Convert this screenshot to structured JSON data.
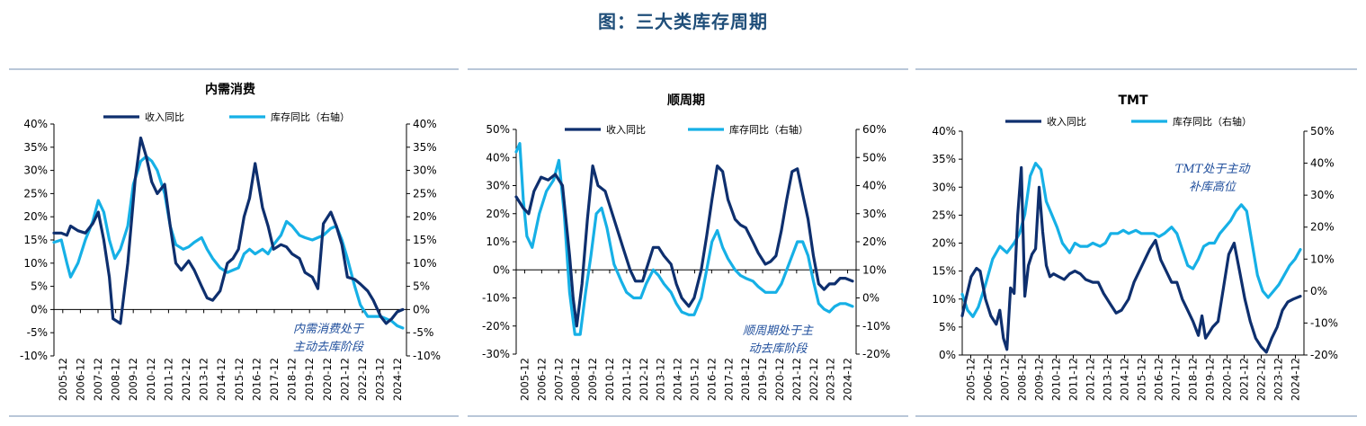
{
  "page_title": "图：三大类库存周期",
  "colors": {
    "revenue": "#0e2f6e",
    "inventory": "#16b0e6",
    "axis": "#000000",
    "annotation": "#1f4e9c"
  },
  "chart_data": [
    {
      "type": "line",
      "title": "内需消费",
      "left_axis": {
        "ylim": [
          -10,
          40
        ],
        "ticks": [
          "-10%",
          "-5%",
          "0%",
          "5%",
          "10%",
          "15%",
          "20%",
          "25%",
          "30%",
          "35%",
          "40%"
        ]
      },
      "right_axis": {
        "ylim": [
          -10,
          40
        ],
        "ticks": [
          "-10%",
          "-5%",
          "0%",
          "5%",
          "10%",
          "15%",
          "20%",
          "25%",
          "30%",
          "35%",
          "40%"
        ]
      },
      "x_ticks": [
        "2005-12",
        "2006-12",
        "2007-12",
        "2008-12",
        "2009-12",
        "2010-12",
        "2011-12",
        "2012-12",
        "2013-12",
        "2014-12",
        "2015-12",
        "2016-12",
        "2017-12",
        "2018-12",
        "2019-12",
        "2020-12",
        "2021-12",
        "2022-12",
        "2023-12",
        "2024-12"
      ],
      "x_range": [
        2005.9,
        2025.0
      ],
      "legend": [
        "收入同比",
        "库存同比（右轴）"
      ],
      "annotation": [
        "内需消费处于",
        "主动去库阶段"
      ],
      "series": [
        {
          "name": "收入同比",
          "axis": "left",
          "color": "#0e2f6e",
          "x": [
            2005.9,
            2006.3,
            2006.6,
            2006.8,
            2007.2,
            2007.6,
            2008.0,
            2008.3,
            2008.6,
            2008.9,
            2009.1,
            2009.5,
            2009.9,
            2010.3,
            2010.6,
            2010.9,
            2011.2,
            2011.5,
            2011.9,
            2012.2,
            2012.5,
            2012.8,
            2013.2,
            2013.5,
            2013.9,
            2014.2,
            2014.5,
            2014.9,
            2015.3,
            2015.6,
            2015.9,
            2016.2,
            2016.5,
            2016.8,
            2017.2,
            2017.5,
            2017.8,
            2018.2,
            2018.5,
            2018.8,
            2019.2,
            2019.5,
            2019.9,
            2020.2,
            2020.5,
            2020.9,
            2021.2,
            2021.5,
            2021.8,
            2022.2,
            2022.5,
            2022.9,
            2023.2,
            2023.6,
            2023.9,
            2024.2,
            2024.5,
            2024.8
          ],
          "y": [
            16.5,
            16.5,
            16,
            18,
            17,
            16.5,
            18.5,
            21,
            15,
            7,
            -2,
            -3,
            10,
            28,
            37,
            33,
            27.5,
            25,
            27,
            18,
            10,
            8.5,
            10.5,
            8.5,
            5,
            2.5,
            2,
            4,
            10,
            11,
            13,
            20,
            24,
            31.5,
            22,
            18,
            13,
            14,
            13.5,
            12,
            11,
            8,
            7,
            4.5,
            18.5,
            21,
            18,
            14,
            7,
            6.5,
            5.5,
            4,
            2,
            -1.5,
            -3,
            -2,
            -0.5,
            0
          ]
        },
        {
          "name": "库存同比（右轴）",
          "axis": "right",
          "color": "#16b0e6",
          "x": [
            2005.9,
            2006.3,
            2006.6,
            2006.8,
            2007.2,
            2007.6,
            2008.0,
            2008.3,
            2008.6,
            2008.9,
            2009.2,
            2009.5,
            2009.9,
            2010.2,
            2010.6,
            2010.9,
            2011.2,
            2011.5,
            2011.9,
            2012.2,
            2012.5,
            2012.9,
            2013.2,
            2013.5,
            2013.9,
            2014.2,
            2014.5,
            2014.9,
            2015.3,
            2015.6,
            2015.9,
            2016.2,
            2016.5,
            2016.8,
            2017.2,
            2017.5,
            2017.8,
            2018.2,
            2018.5,
            2018.8,
            2019.2,
            2019.5,
            2019.9,
            2020.2,
            2020.5,
            2020.9,
            2021.2,
            2021.5,
            2021.8,
            2022.2,
            2022.5,
            2022.9,
            2023.2,
            2023.6,
            2023.9,
            2024.2,
            2024.5,
            2024.8
          ],
          "y": [
            14.5,
            15,
            10,
            7,
            10,
            15,
            19,
            23.5,
            21,
            15,
            11,
            13,
            18,
            27,
            32,
            33,
            32,
            30,
            25,
            18,
            14,
            13,
            13.5,
            14.5,
            15.5,
            13,
            11,
            9,
            8,
            8.5,
            9,
            12,
            13,
            12,
            13,
            12,
            14,
            16,
            19,
            18,
            16,
            15.5,
            15,
            15.5,
            16,
            17.5,
            18,
            15,
            11,
            5,
            1,
            -1.5,
            -1.5,
            -1.5,
            -2,
            -2.5,
            -3.5,
            -4
          ]
        }
      ]
    },
    {
      "type": "line",
      "title": "顺周期",
      "left_axis": {
        "ylim": [
          -30,
          50
        ],
        "ticks": [
          "-30%",
          "-20%",
          "-10%",
          "0%",
          "10%",
          "20%",
          "30%",
          "40%",
          "50%"
        ]
      },
      "right_axis": {
        "ylim": [
          -20,
          60
        ],
        "ticks": [
          "-20%",
          "-10%",
          "0%",
          "10%",
          "20%",
          "30%",
          "40%",
          "50%",
          "60%"
        ]
      },
      "x_ticks": [
        "2005-12",
        "2006-12",
        "2007-12",
        "2008-12",
        "2009-12",
        "2010-12",
        "2011-12",
        "2012-12",
        "2013-12",
        "2014-12",
        "2015-12",
        "2016-12",
        "2017-12",
        "2018-12",
        "2019-12",
        "2020-12",
        "2021-12",
        "2022-12",
        "2023-12",
        "2024-12"
      ],
      "x_range": [
        2005.9,
        2025.0
      ],
      "legend": [
        "收入同比",
        "库存同比（右轴）"
      ],
      "annotation": [
        "顺周期处于主",
        "动去库阶段"
      ],
      "series": [
        {
          "name": "收入同比",
          "axis": "left",
          "color": "#0e2f6e",
          "x": [
            2005.9,
            2006.3,
            2006.6,
            2006.9,
            2007.3,
            2007.7,
            2008.1,
            2008.5,
            2008.9,
            2009.1,
            2009.3,
            2009.6,
            2009.9,
            2010.2,
            2010.5,
            2010.9,
            2011.3,
            2011.6,
            2011.9,
            2012.3,
            2012.6,
            2013.0,
            2013.3,
            2013.6,
            2013.9,
            2014.2,
            2014.6,
            2014.9,
            2015.2,
            2015.6,
            2015.9,
            2016.3,
            2016.6,
            2016.9,
            2017.2,
            2017.5,
            2017.8,
            2018.2,
            2018.5,
            2018.8,
            2019.2,
            2019.5,
            2019.9,
            2020.2,
            2020.5,
            2020.8,
            2021.1,
            2021.4,
            2021.7,
            2022.0,
            2022.3,
            2022.6,
            2022.9,
            2023.2,
            2023.5,
            2023.8,
            2024.1,
            2024.4,
            2024.8
          ],
          "y": [
            26,
            22,
            20,
            28,
            33,
            32,
            34,
            30,
            5,
            -10,
            -20,
            -5,
            18,
            37,
            30,
            28,
            20,
            14,
            8,
            0,
            -4,
            -4,
            2,
            8,
            8,
            5,
            2,
            -5,
            -10,
            -13,
            -10,
            0,
            12,
            25,
            37,
            35,
            25,
            18,
            16,
            15,
            10,
            6,
            2,
            3,
            5,
            14,
            25,
            35,
            36,
            27,
            18,
            5,
            -5,
            -7,
            -5,
            -5,
            -3,
            -3,
            -4
          ]
        },
        {
          "name": "库存同比（右轴）",
          "axis": "right",
          "color": "#16b0e6",
          "x": [
            2005.9,
            2006.1,
            2006.3,
            2006.5,
            2006.8,
            2007.2,
            2007.6,
            2008.0,
            2008.3,
            2008.6,
            2008.9,
            2009.2,
            2009.5,
            2009.8,
            2010.1,
            2010.4,
            2010.7,
            2011.0,
            2011.4,
            2011.8,
            2012.1,
            2012.5,
            2012.9,
            2013.2,
            2013.6,
            2013.9,
            2014.2,
            2014.6,
            2014.9,
            2015.2,
            2015.6,
            2015.9,
            2016.3,
            2016.6,
            2016.9,
            2017.2,
            2017.5,
            2017.8,
            2018.2,
            2018.5,
            2018.8,
            2019.2,
            2019.5,
            2019.9,
            2020.2,
            2020.5,
            2020.8,
            2021.1,
            2021.4,
            2021.7,
            2022.0,
            2022.3,
            2022.6,
            2022.9,
            2023.2,
            2023.5,
            2023.8,
            2024.1,
            2024.4,
            2024.8
          ],
          "y": [
            52,
            55,
            35,
            22,
            18,
            30,
            38,
            42,
            49,
            30,
            2,
            -13,
            -13,
            2,
            15,
            30,
            32,
            25,
            12,
            6,
            2,
            0,
            0,
            5,
            10,
            8,
            5,
            2,
            -2,
            -5,
            -6,
            -6,
            0,
            10,
            20,
            24,
            18,
            14,
            10,
            8,
            7,
            6,
            4,
            2,
            2,
            2,
            5,
            10,
            15,
            20,
            20,
            15,
            6,
            -2,
            -4,
            -5,
            -3,
            -2,
            -2,
            -3
          ]
        }
      ]
    },
    {
      "type": "line",
      "title": "TMT",
      "left_axis": {
        "ylim": [
          0,
          40
        ],
        "ticks": [
          "0%",
          "5%",
          "10%",
          "15%",
          "20%",
          "25%",
          "30%",
          "35%",
          "40%"
        ]
      },
      "right_axis": {
        "ylim": [
          -20,
          50
        ],
        "ticks": [
          "-20%",
          "-10%",
          "0%",
          "10%",
          "20%",
          "30%",
          "40%",
          "50%"
        ]
      },
      "x_ticks": [
        "2005-12",
        "2006-12",
        "2007-12",
        "2008-12",
        "2009-12",
        "2010-12",
        "2011-12",
        "2012-12",
        "2013-12",
        "2014-12",
        "2015-12",
        "2016-12",
        "2017-12",
        "2018-12",
        "2019-12",
        "2020-12",
        "2021-12",
        "2022-12",
        "2023-12",
        "2024-12"
      ],
      "x_range": [
        2005.9,
        2025.0
      ],
      "legend": [
        "收入同比",
        "库存同比（右轴）"
      ],
      "annotation": [
        "TMT处于主动",
        "补库高位"
      ],
      "series": [
        {
          "name": "收入同比",
          "axis": "left",
          "color": "#0e2f6e",
          "x": [
            2005.9,
            2006.1,
            2006.4,
            2006.7,
            2006.9,
            2007.2,
            2007.5,
            2007.8,
            2008.0,
            2008.2,
            2008.4,
            2008.6,
            2008.8,
            2009.0,
            2009.2,
            2009.4,
            2009.6,
            2009.8,
            2010.0,
            2010.2,
            2010.4,
            2010.6,
            2010.8,
            2011.0,
            2011.3,
            2011.6,
            2011.9,
            2012.2,
            2012.5,
            2012.8,
            2013.2,
            2013.5,
            2013.8,
            2014.2,
            2014.5,
            2014.8,
            2015.2,
            2015.5,
            2015.8,
            2016.1,
            2016.4,
            2016.7,
            2017.0,
            2017.3,
            2017.6,
            2017.9,
            2018.2,
            2018.5,
            2018.8,
            2019.1,
            2019.3,
            2019.5,
            2019.7,
            2019.9,
            2020.2,
            2020.5,
            2020.8,
            2021.1,
            2021.4,
            2021.7,
            2022.0,
            2022.3,
            2022.6,
            2022.9,
            2023.2,
            2023.5,
            2023.8,
            2024.1,
            2024.4,
            2024.8
          ],
          "y": [
            7,
            10,
            14,
            15.5,
            15,
            10,
            7,
            5.5,
            8,
            3,
            1,
            12,
            11,
            25,
            33.5,
            10.5,
            16,
            18,
            19,
            30,
            22,
            16,
            14,
            14.5,
            14,
            13.5,
            14.5,
            15,
            14.5,
            13.5,
            13,
            13,
            11,
            9,
            7.5,
            8,
            10,
            13,
            15,
            17,
            19,
            20.5,
            17,
            15,
            13,
            13,
            10,
            8,
            6,
            3.5,
            7,
            3,
            4,
            5,
            6,
            12,
            18,
            20,
            15,
            10,
            6,
            3,
            1.5,
            0.5,
            3,
            5,
            8,
            9.5,
            10,
            10.5
          ]
        },
        {
          "name": "库存同比（右轴）",
          "axis": "right",
          "color": "#16b0e6",
          "x": [
            2005.9,
            2006.2,
            2006.5,
            2006.8,
            2007.2,
            2007.6,
            2008.0,
            2008.4,
            2008.8,
            2009.1,
            2009.4,
            2009.7,
            2010.0,
            2010.3,
            2010.6,
            2010.9,
            2011.2,
            2011.5,
            2011.9,
            2012.2,
            2012.5,
            2012.9,
            2013.2,
            2013.6,
            2013.9,
            2014.2,
            2014.6,
            2014.9,
            2015.2,
            2015.6,
            2015.9,
            2016.2,
            2016.6,
            2016.9,
            2017.2,
            2017.6,
            2017.9,
            2018.2,
            2018.5,
            2018.8,
            2019.1,
            2019.4,
            2019.7,
            2020.0,
            2020.3,
            2020.6,
            2020.9,
            2021.2,
            2021.5,
            2021.8,
            2022.1,
            2022.4,
            2022.7,
            2023.0,
            2023.3,
            2023.6,
            2023.9,
            2024.2,
            2024.5,
            2024.8
          ],
          "y": [
            -1,
            -6,
            -8,
            -5,
            2,
            10,
            14,
            12,
            15,
            18,
            24,
            36,
            40,
            38,
            28,
            24,
            20,
            15,
            12,
            15,
            14,
            14,
            15,
            14,
            15,
            18,
            18,
            19,
            18,
            19,
            18,
            18,
            18,
            17,
            18,
            20,
            18,
            13,
            8,
            7,
            10,
            14,
            15,
            15,
            18,
            20,
            22,
            25,
            27,
            25,
            15,
            5,
            0,
            -2,
            0,
            2,
            5,
            8,
            10,
            13
          ]
        }
      ]
    }
  ]
}
